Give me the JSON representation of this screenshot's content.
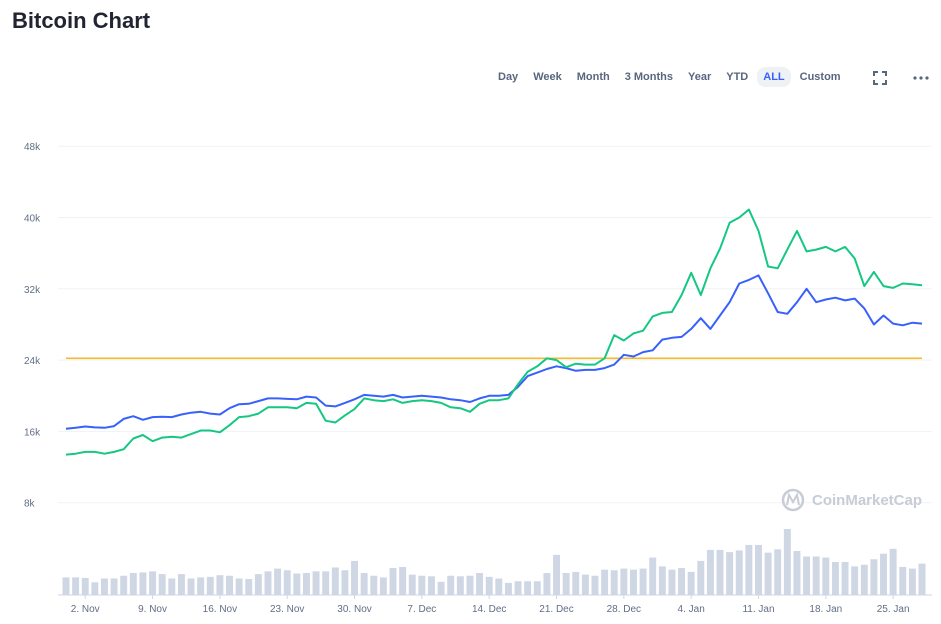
{
  "page": {
    "title": "Bitcoin Chart"
  },
  "toolbar": {
    "ranges": [
      "Day",
      "Week",
      "Month",
      "3 Months",
      "Year",
      "YTD",
      "ALL",
      "Custom"
    ],
    "active_range": "ALL",
    "fullscreen_icon": "fullscreen-icon",
    "more_icon": "more-icon"
  },
  "watermark": {
    "text": "CoinMarketCap",
    "icon": "coinmarketcap-logo-icon"
  },
  "colors": {
    "market_cap_line": "#16c784",
    "price_line": "#3861fb",
    "reference_line": "#f3ba2f",
    "volume_bars": "#cfd6e4"
  },
  "chart_data": {
    "type": "line",
    "title": "Bitcoin Chart",
    "ylim": [
      0,
      50000
    ],
    "y_ticks": [
      8000,
      16000,
      24000,
      32000,
      40000,
      48000
    ],
    "y_tick_labels": [
      "8k",
      "16k",
      "24k",
      "32k",
      "40k",
      "48k"
    ],
    "x_tick_labels": [
      "2. Nov",
      "9. Nov",
      "16. Nov",
      "23. Nov",
      "30. Nov",
      "7. Dec",
      "14. Dec",
      "21. Dec",
      "28. Dec",
      "4. Jan",
      "11. Jan",
      "18. Jan",
      "25. Jan"
    ],
    "x_tick_days": [
      2,
      9,
      16,
      23,
      30,
      37,
      44,
      51,
      58,
      65,
      72,
      79,
      86
    ],
    "x_start_day": 0,
    "x_end_day": 89,
    "grid": true,
    "reference_line": {
      "value": 24200
    },
    "series": [
      {
        "values": [
          16300,
          16400,
          16550,
          16450,
          16400,
          16600,
          17400,
          17700,
          17300,
          17600,
          17650,
          17600,
          17900,
          18100,
          18200,
          18000,
          17900,
          18600,
          19050,
          19100,
          19400,
          19700,
          19700,
          19650,
          19600,
          19900,
          19800,
          18900,
          18800,
          19200,
          19600,
          20100,
          20000,
          19900,
          20100,
          19800,
          19900,
          20000,
          19900,
          19800,
          19600,
          19500,
          19300,
          19700,
          20000,
          20000,
          20100,
          21000,
          22200,
          22600,
          23000,
          23300,
          23100,
          22800,
          22900,
          22900,
          23100,
          23500,
          24600,
          24400,
          24900,
          25100,
          26300,
          26500,
          26600,
          27500,
          28700,
          27500,
          29000,
          30500,
          32600,
          33000,
          33500,
          31500,
          29400,
          29200,
          30500,
          32000,
          30500,
          30800,
          31000,
          30700,
          30900,
          29800,
          28000,
          29000,
          28100,
          27900,
          28200,
          28100
        ]
      },
      {
        "values": [
          13400,
          13500,
          13700,
          13700,
          13500,
          13700,
          14000,
          15200,
          15600,
          14900,
          15300,
          15400,
          15300,
          15700,
          16100,
          16100,
          15900,
          16700,
          17600,
          17700,
          18000,
          18700,
          18700,
          18700,
          18600,
          19200,
          19100,
          17200,
          17000,
          17800,
          18500,
          19700,
          19500,
          19400,
          19600,
          19200,
          19400,
          19500,
          19400,
          19200,
          18700,
          18600,
          18200,
          19100,
          19500,
          19500,
          19700,
          21300,
          22700,
          23300,
          24200,
          24000,
          23200,
          23600,
          23500,
          23500,
          24200,
          26800,
          26200,
          27000,
          27300,
          28900,
          29300,
          29400,
          31300,
          33800,
          31300,
          34300,
          36500,
          39400,
          40000,
          40900,
          38500,
          34500,
          34300,
          36400,
          38500,
          36200,
          36400,
          36700,
          36200,
          36700,
          35400,
          32300,
          33900,
          32300,
          32100,
          32600,
          32500,
          32400
        ]
      }
    ],
    "volume_bars": [
      0.32,
      0.32,
      0.31,
      0.23,
      0.3,
      0.3,
      0.35,
      0.4,
      0.41,
      0.43,
      0.38,
      0.3,
      0.38,
      0.3,
      0.32,
      0.33,
      0.36,
      0.35,
      0.3,
      0.29,
      0.38,
      0.43,
      0.48,
      0.45,
      0.39,
      0.4,
      0.43,
      0.43,
      0.5,
      0.45,
      0.62,
      0.4,
      0.35,
      0.32,
      0.49,
      0.51,
      0.37,
      0.35,
      0.34,
      0.24,
      0.35,
      0.34,
      0.35,
      0.4,
      0.33,
      0.3,
      0.22,
      0.25,
      0.25,
      0.25,
      0.4,
      0.73,
      0.4,
      0.42,
      0.37,
      0.35,
      0.46,
      0.45,
      0.48,
      0.46,
      0.48,
      0.68,
      0.52,
      0.46,
      0.49,
      0.42,
      0.62,
      0.82,
      0.82,
      0.78,
      0.81,
      0.91,
      0.91,
      0.77,
      0.83,
      1.2,
      0.8,
      0.7,
      0.7,
      0.68,
      0.6,
      0.6,
      0.52,
      0.55,
      0.65,
      0.75,
      0.84,
      0.51,
      0.48,
      0.57
    ]
  }
}
